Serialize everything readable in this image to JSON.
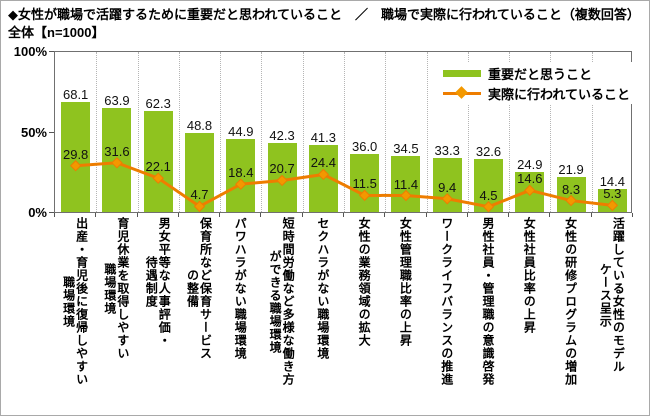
{
  "title": {
    "line1": "◆女性が職場で活躍するために重要だと思われていること　／　職場で実際に行われていること（複数回答）",
    "line2": "全体【n=1000】"
  },
  "axis": {
    "ticks": [
      "100%",
      "50%",
      "0%"
    ]
  },
  "colors": {
    "bar_green": "#8FC31F",
    "line_orange": "#EE7D00",
    "marker_orange": "#F39800",
    "grid": "#b5b5b5",
    "axis": "#555555"
  },
  "chart_data": {
    "type": "bar",
    "subtype": "bar-line-combo",
    "title": "◆女性が職場で活躍するために重要だと思われていること ／ 職場で実際に行われていること（複数回答） 全体【n=1000】",
    "categories": [
      "出産・育児後に復帰しやすい\n職場環境",
      "育児休業を取得しやすい\n職場環境",
      "男女平等な人事評価・\n待遇制度",
      "保育所など保育サービス\nの整備",
      "パワハラがない職場環境",
      "短時間労働など多様な働き方\nができる職場環境",
      "セクハラがない職場環境",
      "女性の業務領域の拡大",
      "女性管理職比率の上昇",
      "ワークライフバランスの推進",
      "男性社員・管理職の意識啓発",
      "女性社員比率の上昇",
      "女性の研修プログラムの増加",
      "活躍している女性のモデル\nケース呈示"
    ],
    "series": [
      {
        "name": "重要だと思うこと",
        "type": "bar",
        "color": "#8FC31F",
        "values": [
          "68.1",
          "63.9",
          "62.3",
          "48.8",
          "44.9",
          "42.3",
          "41.3",
          "36.0",
          "34.5",
          "33.3",
          "32.6",
          "24.9",
          "21.9",
          "14.4"
        ]
      },
      {
        "name": "実際に行われていること",
        "type": "line",
        "color": "#EE7D00",
        "values": [
          "29.8",
          "31.6",
          "22.1",
          "4.7",
          "18.4",
          "20.7",
          "24.4",
          "11.5",
          "11.4",
          "9.4",
          "4.5",
          "14.6",
          "8.3",
          "5.3"
        ]
      }
    ],
    "ylabel": "",
    "xlabel": "",
    "ylim": [
      0,
      100
    ],
    "yticks": [
      0,
      50,
      100
    ],
    "grid": "vertical-dotted",
    "legend_position": "top-right-inside"
  }
}
